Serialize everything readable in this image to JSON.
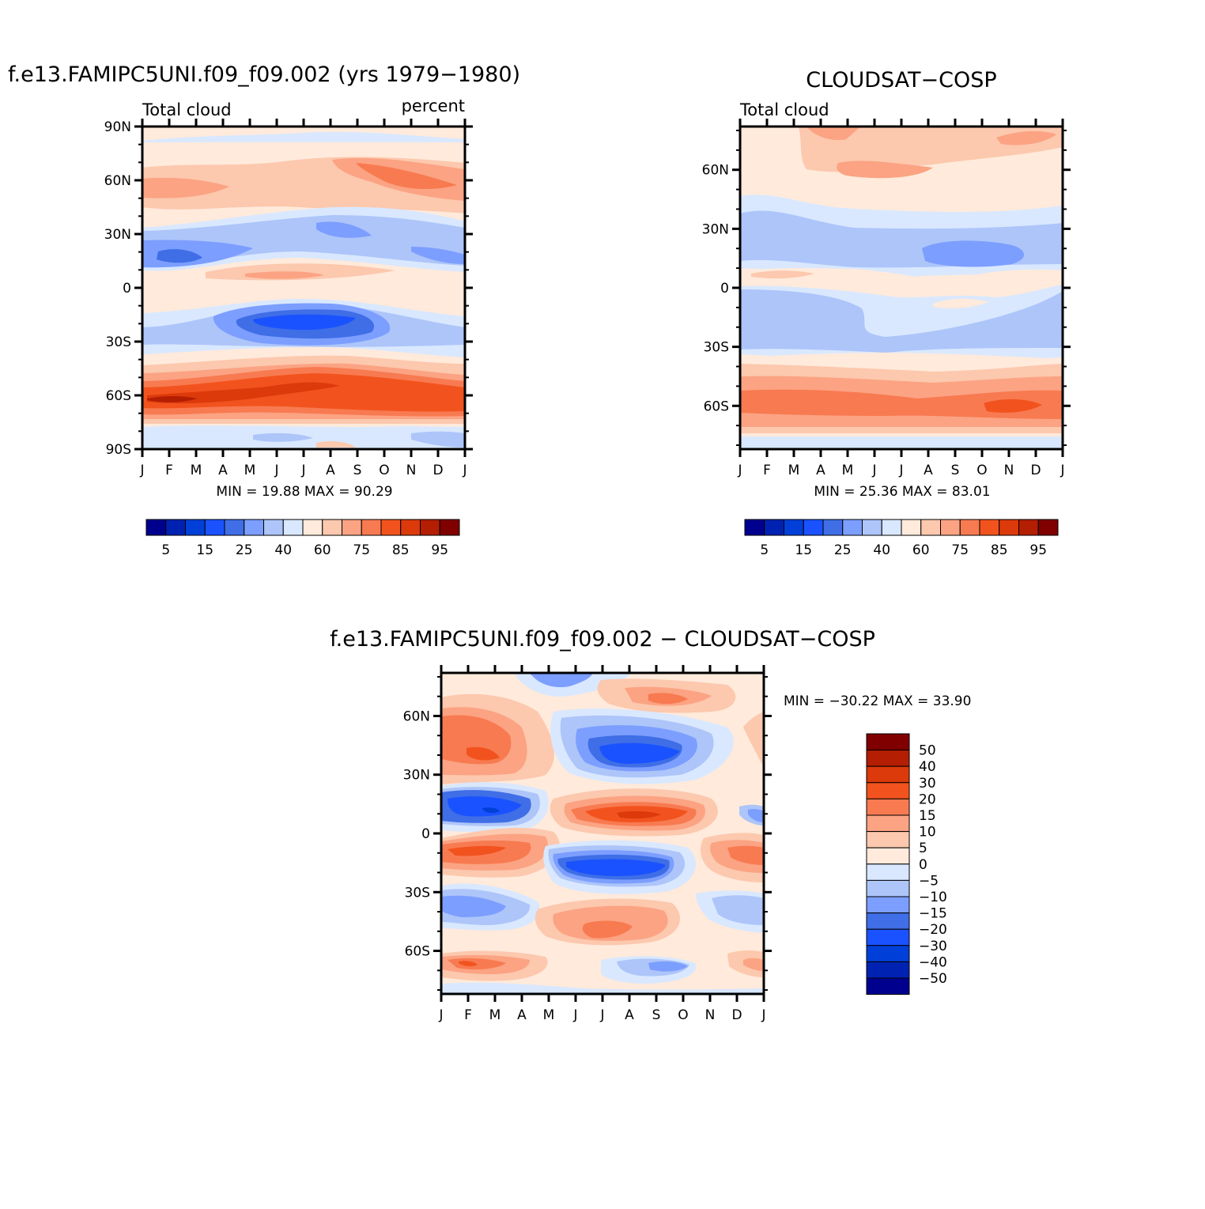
{
  "chart_data": [
    {
      "type": "heatmap",
      "title": "f.e13.FAMIPC5UNI.f09_f09.002 (yrs 1979−1980)",
      "left_label": "Total cloud",
      "right_label": "percent",
      "xlabels": [
        "J",
        "F",
        "M",
        "A",
        "M",
        "J",
        "J",
        "A",
        "S",
        "O",
        "N",
        "D",
        "J"
      ],
      "ylabels": [
        "90N",
        "60N",
        "30N",
        "0",
        "30S",
        "60S",
        "90S"
      ],
      "ylim": [
        -90,
        90
      ],
      "min_max_text": "MIN =   19.88  MAX =   90.29",
      "colorbar_labels": [
        "5",
        "15",
        "25",
        "40",
        "60",
        "75",
        "85",
        "95"
      ],
      "colors": [
        "#00008f",
        "#0022b2",
        "#0040d8",
        "#1a52ff",
        "#3f6ee6",
        "#7c9eff",
        "#adc5f9",
        "#d9e8ff",
        "#ffeadb",
        "#fcc8ae",
        "#fba383",
        "#f87a51",
        "#f2531e",
        "#dc3a0b",
        "#b41e02",
        "#800000"
      ],
      "min": 19.88,
      "max": 90.29
    },
    {
      "type": "heatmap",
      "title": "CLOUDSAT−COSP",
      "left_label": "Total cloud",
      "xlabels": [
        "J",
        "F",
        "M",
        "A",
        "M",
        "J",
        "J",
        "A",
        "S",
        "O",
        "N",
        "D",
        "J"
      ],
      "ylabels": [
        "60N",
        "30N",
        "0",
        "30S",
        "60S"
      ],
      "ylim": [
        -82,
        82
      ],
      "min_max_text": "MIN =   25.36  MAX =   83.01",
      "colorbar_labels": [
        "5",
        "15",
        "25",
        "40",
        "60",
        "75",
        "85",
        "95"
      ],
      "min": 25.36,
      "max": 83.01
    },
    {
      "type": "heatmap",
      "title": "f.e13.FAMIPC5UNI.f09_f09.002  −  CLOUDSAT−COSP",
      "xlabels": [
        "J",
        "F",
        "M",
        "A",
        "M",
        "J",
        "J",
        "A",
        "S",
        "O",
        "N",
        "D",
        "J"
      ],
      "ylabels": [
        "60N",
        "30N",
        "0",
        "30S",
        "60S"
      ],
      "ylim": [
        -82,
        82
      ],
      "min_max_text": "MIN = −30.22  MAX =   33.90",
      "colorbar_labels": [
        "50",
        "40",
        "30",
        "20",
        "15",
        "10",
        "5",
        "0",
        "−5",
        "−10",
        "−15",
        "−20",
        "−30",
        "−40",
        "−50"
      ],
      "colors": [
        "#800000",
        "#b41e02",
        "#dc3a0b",
        "#f2531e",
        "#f87a51",
        "#fba383",
        "#fcc8ae",
        "#ffeadb",
        "#d9e8ff",
        "#adc5f9",
        "#7c9eff",
        "#3f6ee6",
        "#1a52ff",
        "#0040d8",
        "#0022b2",
        "#00008f"
      ],
      "min": -30.22,
      "max": 33.9
    }
  ]
}
